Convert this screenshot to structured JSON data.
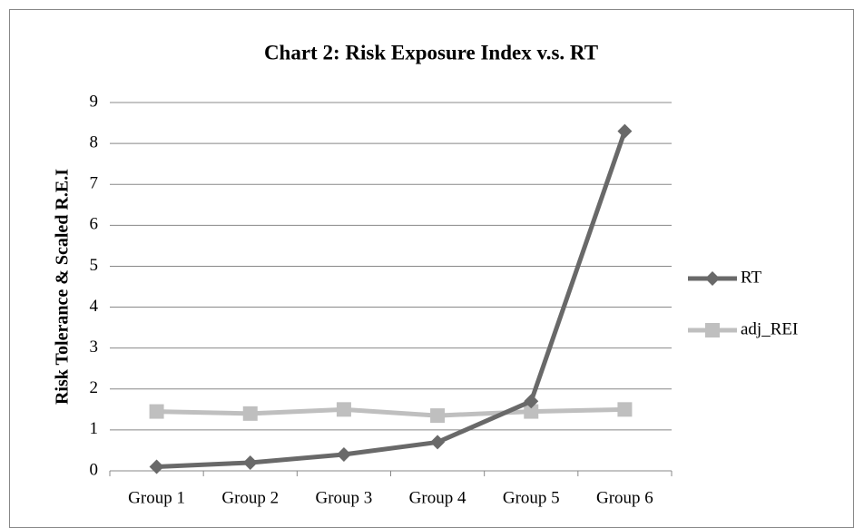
{
  "chart_data": {
    "type": "line",
    "title": "Chart 2: Risk Exposure Index v.s. RT",
    "y_label": "Risk Tolerance & Scaled R.E.I",
    "categories": [
      "Group 1",
      "Group 2",
      "Group 3",
      "Group 4",
      "Group 5",
      "Group 6"
    ],
    "series": [
      {
        "name": "RT",
        "color": "#696969",
        "marker": "diamond",
        "values": [
          0.1,
          0.2,
          0.4,
          0.7,
          1.7,
          8.3
        ]
      },
      {
        "name": "adj_REI",
        "color": "#bfbfbf",
        "marker": "square",
        "values": [
          1.45,
          1.4,
          1.5,
          1.35,
          1.45,
          1.5
        ]
      }
    ],
    "ylim": [
      0,
      9
    ],
    "yticks": [
      0,
      1,
      2,
      3,
      4,
      5,
      6,
      7,
      8,
      9
    ],
    "grid": true,
    "legend": "right"
  }
}
